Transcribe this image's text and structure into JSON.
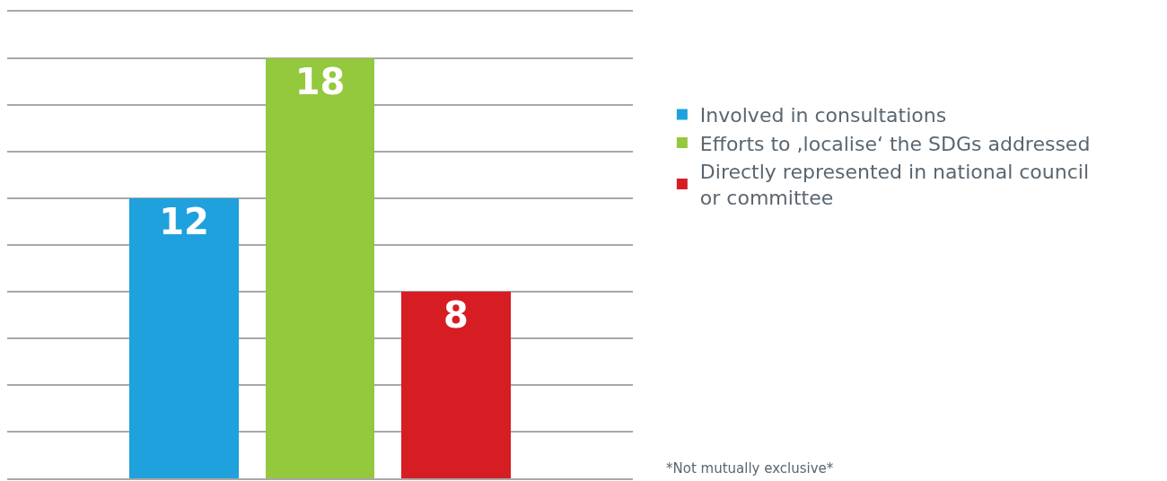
{
  "chart_data": {
    "type": "bar",
    "categories": [
      null,
      null,
      null
    ],
    "series": [
      {
        "name": "Involved in consultations",
        "color": "#1ea1dc",
        "values": [
          12,
          null,
          null
        ]
      },
      {
        "name": "Efforts to ,localise‘ the SDGs addressed",
        "color": "#94c83d",
        "values": [
          null,
          18,
          null
        ]
      },
      {
        "name": "Directly represented in national council or committee",
        "color": "#d61d23",
        "values": [
          null,
          null,
          8
        ]
      }
    ],
    "ylim": [
      0,
      20
    ],
    "yticks": [
      {
        "value": 0,
        "label": null
      },
      {
        "value": 2,
        "label": null
      },
      {
        "value": 4,
        "label": null
      },
      {
        "value": 6,
        "label": null
      },
      {
        "value": 8,
        "label": null
      },
      {
        "value": 10,
        "label": null
      },
      {
        "value": 12,
        "label": null
      },
      {
        "value": 14,
        "label": null
      },
      {
        "value": 16,
        "label": null
      },
      {
        "value": 18,
        "label": null
      },
      {
        "value": 20,
        "label": null
      }
    ],
    "grid": "y",
    "legend": "right",
    "data_labels": true,
    "stacked": true,
    "annotations": [
      "*Not mutually exclusive*"
    ]
  }
}
